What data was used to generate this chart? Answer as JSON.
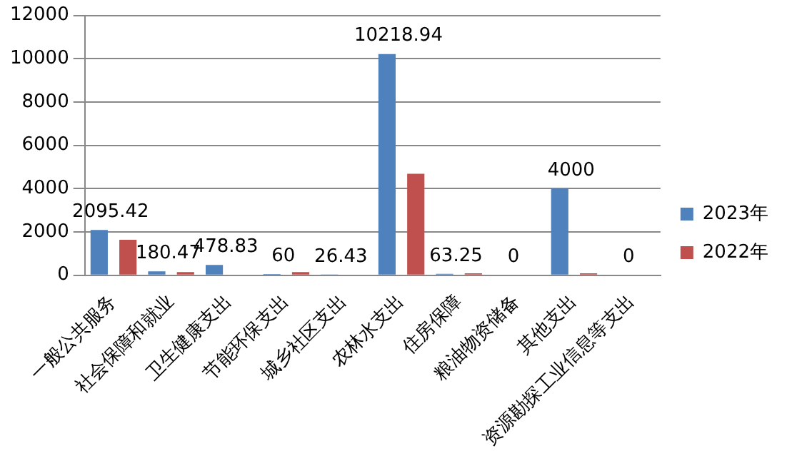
{
  "chart_data": {
    "type": "bar",
    "categories": [
      "一般公共服务",
      "社会保障和就业",
      "卫生健康支出",
      "节能环保支出",
      "城乡社区支出",
      "农林水支出",
      "住房保障",
      "粮油物资储备",
      "其他支出",
      "资源勘探工业信息等支出"
    ],
    "series": [
      {
        "name": "2023年",
        "color": "#4f81bd",
        "values": [
          2095.42,
          180.47,
          478.83,
          60,
          26.43,
          10218.94,
          63.25,
          0,
          4000,
          0
        ],
        "value_labels": [
          "2095.42",
          "180.47",
          "478.83",
          "60",
          "26.43",
          "10218.94",
          "63.25",
          "0",
          "4000",
          "0"
        ]
      },
      {
        "name": "2022年",
        "color": "#c0504d",
        "values": [
          1640,
          150,
          0,
          150,
          0,
          4690,
          90,
          0,
          90,
          0
        ]
      }
    ],
    "ylim": [
      0,
      12000
    ],
    "yticks": [
      0,
      2000,
      4000,
      6000,
      8000,
      10000,
      12000
    ],
    "grid": "y",
    "legend": "right"
  }
}
